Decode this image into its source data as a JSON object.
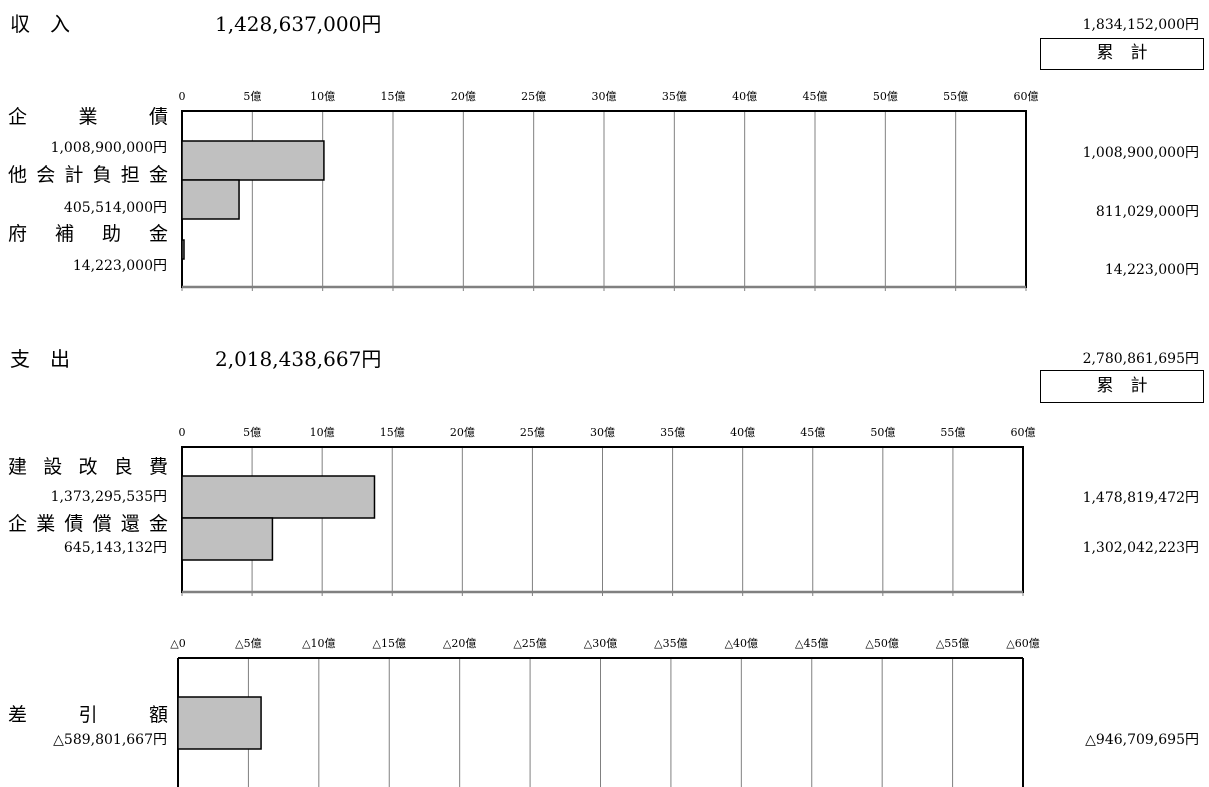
{
  "income": {
    "title": "収　入",
    "total": "1,428,637,000円",
    "cumulative_total": "1,834,152,000円",
    "cumulative_label": "累　計",
    "items": [
      {
        "label": "企　業　債",
        "amount": "1,008,900,000円",
        "cumulative": "1,008,900,000円"
      },
      {
        "label": "他会計負担金",
        "amount": "405,514,000円",
        "cumulative": "811,029,000円"
      },
      {
        "label": "府　補　助　金",
        "amount": "14,223,000円",
        "cumulative": "14,223,000円"
      }
    ]
  },
  "expense": {
    "title": "支　出",
    "total": "2,018,438,667円",
    "cumulative_total": "2,780,861,695円",
    "cumulative_label": "累　計",
    "items": [
      {
        "label": "建設改良費",
        "amount": "1,373,295,535円",
        "cumulative": "1,478,819,472円"
      },
      {
        "label": "企業債償還金",
        "amount": "645,143,132円",
        "cumulative": "1,302,042,223円"
      }
    ]
  },
  "difference": {
    "items": [
      {
        "label": "差　引　額",
        "amount": "△589,801,667円",
        "cumulative": "△946,709,695円"
      }
    ]
  },
  "chart_data": [
    {
      "type": "bar",
      "orientation": "horizontal",
      "categories": [
        "企業債",
        "他会計負担金",
        "府補助金"
      ],
      "values": [
        1008900000,
        405514000,
        14223000
      ],
      "xlim": [
        0,
        6000000000
      ],
      "tick_labels": [
        "0",
        "5億",
        "10億",
        "15億",
        "20億",
        "25億",
        "30億",
        "35億",
        "40億",
        "45億",
        "50億",
        "55億",
        "60億"
      ],
      "grid": true,
      "bar_color": "#c0c0c0"
    },
    {
      "type": "bar",
      "orientation": "horizontal",
      "categories": [
        "建設改良費",
        "企業債償還金"
      ],
      "values": [
        1373295535,
        645143132
      ],
      "xlim": [
        0,
        6000000000
      ],
      "tick_labels": [
        "0",
        "5億",
        "10億",
        "15億",
        "20億",
        "25億",
        "30億",
        "35億",
        "40億",
        "45億",
        "50億",
        "55億",
        "60億"
      ],
      "grid": true,
      "bar_color": "#c0c0c0"
    },
    {
      "type": "bar",
      "orientation": "horizontal",
      "categories": [
        "差引額"
      ],
      "values": [
        589801667
      ],
      "xlim": [
        0,
        6000000000
      ],
      "tick_labels": [
        "△0",
        "△5億",
        "△10億",
        "△15億",
        "△20億",
        "△25億",
        "△30億",
        "△35億",
        "△40億",
        "△45億",
        "△50億",
        "△55億",
        "△60億"
      ],
      "grid": true,
      "bar_color": "#c0c0c0"
    }
  ]
}
